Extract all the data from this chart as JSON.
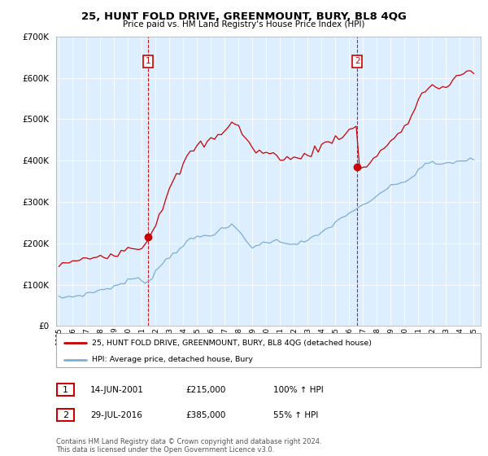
{
  "title": "25, HUNT FOLD DRIVE, GREENMOUNT, BURY, BL8 4QG",
  "subtitle": "Price paid vs. HM Land Registry's House Price Index (HPI)",
  "legend_label_red": "25, HUNT FOLD DRIVE, GREENMOUNT, BURY, BL8 4QG (detached house)",
  "legend_label_blue": "HPI: Average price, detached house, Bury",
  "sale1_date": "14-JUN-2001",
  "sale1_price": "£215,000",
  "sale1_info": "100% ↑ HPI",
  "sale2_date": "29-JUL-2016",
  "sale2_price": "£385,000",
  "sale2_info": "55% ↑ HPI",
  "footnote": "Contains HM Land Registry data © Crown copyright and database right 2024.\nThis data is licensed under the Open Government Licence v3.0.",
  "vline1_year": 2001.45,
  "vline2_year": 2016.58,
  "marker1_x": 2001.45,
  "marker1_y": 215000,
  "marker2_x": 2016.58,
  "marker2_y": 385000,
  "ylim": [
    0,
    700000
  ],
  "xlim": [
    1994.8,
    2025.5
  ],
  "red_color": "#cc0000",
  "blue_color": "#7bafd4",
  "vline_color": "#cc0000",
  "bg_color": "#ffffff",
  "plot_bg_color": "#ddeeff",
  "grid_color": "#ffffff",
  "years_hpi": [
    1995.0,
    1995.25,
    1995.5,
    1995.75,
    1996.0,
    1996.25,
    1996.5,
    1996.75,
    1997.0,
    1997.25,
    1997.5,
    1997.75,
    1998.0,
    1998.25,
    1998.5,
    1998.75,
    1999.0,
    1999.25,
    1999.5,
    1999.75,
    2000.0,
    2000.25,
    2000.5,
    2000.75,
    2001.0,
    2001.25,
    2001.5,
    2001.75,
    2002.0,
    2002.25,
    2002.5,
    2002.75,
    2003.0,
    2003.25,
    2003.5,
    2003.75,
    2004.0,
    2004.25,
    2004.5,
    2004.75,
    2005.0,
    2005.25,
    2005.5,
    2005.75,
    2006.0,
    2006.25,
    2006.5,
    2006.75,
    2007.0,
    2007.25,
    2007.5,
    2007.75,
    2008.0,
    2008.25,
    2008.5,
    2008.75,
    2009.0,
    2009.25,
    2009.5,
    2009.75,
    2010.0,
    2010.25,
    2010.5,
    2010.75,
    2011.0,
    2011.25,
    2011.5,
    2011.75,
    2012.0,
    2012.25,
    2012.5,
    2012.75,
    2013.0,
    2013.25,
    2013.5,
    2013.75,
    2014.0,
    2014.25,
    2014.5,
    2014.75,
    2015.0,
    2015.25,
    2015.5,
    2015.75,
    2016.0,
    2016.25,
    2016.5,
    2016.75,
    2017.0,
    2017.25,
    2017.5,
    2017.75,
    2018.0,
    2018.25,
    2018.5,
    2018.75,
    2019.0,
    2019.25,
    2019.5,
    2019.75,
    2020.0,
    2020.25,
    2020.5,
    2020.75,
    2021.0,
    2021.25,
    2021.5,
    2021.75,
    2022.0,
    2022.25,
    2022.5,
    2022.75,
    2023.0,
    2023.25,
    2023.5,
    2023.75,
    2024.0,
    2024.25,
    2024.5,
    2024.75,
    2025.0
  ],
  "hpi_values": [
    68000,
    69000,
    70000,
    71000,
    72000,
    73000,
    74000,
    76000,
    78000,
    80000,
    82000,
    85000,
    87000,
    89000,
    91000,
    93000,
    96000,
    99000,
    102000,
    106000,
    110000,
    113000,
    116000,
    112000,
    109000,
    107000,
    110000,
    120000,
    132000,
    143000,
    152000,
    160000,
    168000,
    175000,
    182000,
    189000,
    196000,
    202000,
    208000,
    212000,
    215000,
    216000,
    218000,
    220000,
    222000,
    225000,
    228000,
    232000,
    236000,
    240000,
    242000,
    238000,
    230000,
    220000,
    208000,
    198000,
    192000,
    193000,
    196000,
    200000,
    203000,
    205000,
    206000,
    205000,
    204000,
    203000,
    202000,
    200000,
    199000,
    200000,
    202000,
    204000,
    207000,
    211000,
    215000,
    220000,
    226000,
    232000,
    238000,
    244000,
    250000,
    256000,
    262000,
    268000,
    274000,
    279000,
    283000,
    286000,
    290000,
    295000,
    300000,
    306000,
    315000,
    322000,
    328000,
    332000,
    336000,
    340000,
    344000,
    348000,
    350000,
    352000,
    358000,
    368000,
    378000,
    385000,
    390000,
    393000,
    394000,
    393000,
    392000,
    391000,
    392000,
    394000,
    396000,
    398000,
    399000,
    400000,
    401000,
    402000,
    403000
  ],
  "red_values": [
    148000,
    150000,
    152000,
    153000,
    154000,
    155000,
    157000,
    160000,
    163000,
    165000,
    167000,
    169000,
    170000,
    171000,
    172000,
    174000,
    176000,
    178000,
    181000,
    185000,
    188000,
    190000,
    192000,
    191000,
    190000,
    200000,
    215000,
    230000,
    250000,
    270000,
    290000,
    310000,
    330000,
    345000,
    360000,
    375000,
    390000,
    405000,
    418000,
    428000,
    435000,
    438000,
    440000,
    445000,
    450000,
    455000,
    460000,
    468000,
    476000,
    485000,
    492000,
    488000,
    480000,
    468000,
    455000,
    440000,
    428000,
    425000,
    422000,
    420000,
    418000,
    415000,
    413000,
    412000,
    410000,
    408000,
    406000,
    404000,
    403000,
    405000,
    408000,
    412000,
    416000,
    420000,
    425000,
    430000,
    436000,
    440000,
    445000,
    450000,
    455000,
    458000,
    462000,
    467000,
    472000,
    476000,
    479000,
    382000,
    385000,
    390000,
    396000,
    403000,
    412000,
    422000,
    432000,
    440000,
    448000,
    455000,
    462000,
    468000,
    476000,
    490000,
    510000,
    530000,
    548000,
    560000,
    570000,
    576000,
    580000,
    578000,
    576000,
    574000,
    576000,
    580000,
    590000,
    600000,
    608000,
    612000,
    615000,
    618000,
    620000
  ]
}
